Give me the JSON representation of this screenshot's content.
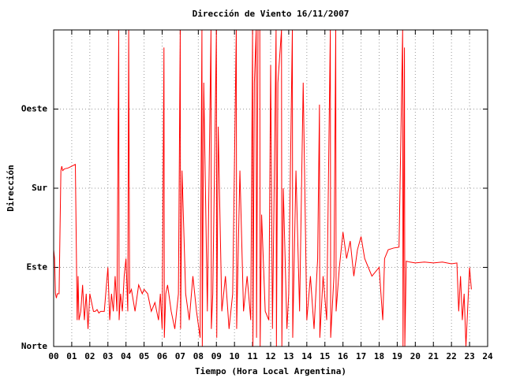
{
  "chart_data": {
    "type": "line",
    "title": "Dirección de Viento 16/11/2007",
    "x_label": "Tiempo (Hora Local Argentina)",
    "y_label": "Dirección",
    "color": "#ff0000",
    "grid": true,
    "xlim": [
      0,
      24
    ],
    "xticks": [
      {
        "value": 0,
        "label": "00"
      },
      {
        "value": 1,
        "label": "01"
      },
      {
        "value": 2,
        "label": "02"
      },
      {
        "value": 3,
        "label": "03"
      },
      {
        "value": 4,
        "label": "04"
      },
      {
        "value": 5,
        "label": "05"
      },
      {
        "value": 6,
        "label": "06"
      },
      {
        "value": 7,
        "label": "07"
      },
      {
        "value": 8,
        "label": "08"
      },
      {
        "value": 9,
        "label": "09"
      },
      10,
      11,
      12,
      13,
      14,
      15,
      16,
      17,
      18,
      19,
      20,
      21,
      22,
      23,
      24
    ],
    "ylim": [
      0,
      360
    ],
    "yticks": [
      {
        "value": 0,
        "label": "Norte"
      },
      {
        "value": 90,
        "label": "Este"
      },
      {
        "value": 180,
        "label": "Sur"
      },
      {
        "value": 270,
        "label": "Oeste"
      }
    ],
    "x": [
      0.0,
      0.05,
      0.1,
      0.15,
      0.2,
      0.3,
      0.4,
      0.45,
      0.5,
      0.6,
      0.8,
      1.0,
      1.2,
      1.3,
      1.35,
      1.4,
      1.5,
      1.6,
      1.7,
      1.8,
      1.9,
      2.0,
      2.1,
      2.2,
      2.3,
      2.4,
      2.5,
      2.6,
      2.8,
      3.0,
      3.1,
      3.2,
      3.3,
      3.4,
      3.5,
      3.6,
      3.62,
      3.7,
      3.8,
      3.9,
      4.0,
      4.1,
      4.15,
      4.2,
      4.3,
      4.5,
      4.7,
      4.9,
      5.0,
      5.2,
      5.4,
      5.6,
      5.8,
      5.9,
      6.0,
      6.1,
      6.12,
      6.2,
      6.3,
      6.5,
      6.7,
      6.9,
      7.0,
      7.02,
      7.1,
      7.3,
      7.5,
      7.7,
      7.9,
      8.1,
      8.2,
      8.22,
      8.3,
      8.5,
      8.7,
      8.72,
      8.8,
      9.0,
      9.02,
      9.1,
      9.3,
      9.5,
      9.7,
      9.9,
      10.1,
      10.12,
      10.3,
      10.5,
      10.7,
      10.9,
      11.0,
      11.02,
      11.1,
      11.2,
      11.22,
      11.3,
      11.4,
      11.42,
      11.5,
      11.7,
      11.9,
      12.0,
      12.1,
      12.3,
      12.32,
      12.4,
      12.6,
      12.62,
      12.7,
      12.9,
      13.0,
      13.2,
      13.22,
      13.4,
      13.6,
      13.8,
      14.0,
      14.2,
      14.4,
      14.6,
      14.7,
      14.72,
      14.9,
      15.1,
      15.3,
      15.32,
      15.5,
      15.6,
      15.62,
      15.8,
      16.0,
      16.2,
      16.4,
      16.6,
      16.8,
      17.0,
      17.2,
      17.4,
      17.6,
      17.8,
      18.0,
      18.2,
      18.3,
      18.5,
      18.8,
      19.1,
      19.3,
      19.32,
      19.4,
      19.42,
      19.5,
      19.7,
      20.0,
      20.5,
      21.0,
      21.5,
      22.0,
      22.3,
      22.4,
      22.5,
      22.6,
      22.7,
      22.8,
      23.0,
      23.1
    ],
    "values": [
      110,
      100,
      60,
      55,
      60,
      60,
      200,
      205,
      200,
      202,
      203,
      205,
      207,
      30,
      80,
      30,
      40,
      70,
      30,
      60,
      20,
      60,
      50,
      40,
      40,
      42,
      38,
      40,
      40,
      90,
      30,
      60,
      40,
      80,
      40,
      360,
      30,
      60,
      40,
      80,
      100,
      40,
      360,
      60,
      65,
      40,
      70,
      60,
      65,
      60,
      40,
      50,
      30,
      60,
      20,
      340,
      10,
      60,
      70,
      40,
      20,
      60,
      360,
      20,
      200,
      60,
      30,
      80,
      40,
      10,
      360,
      0,
      300,
      40,
      360,
      20,
      60,
      360,
      10,
      250,
      40,
      80,
      20,
      60,
      360,
      20,
      200,
      40,
      80,
      30,
      360,
      0,
      300,
      360,
      10,
      360,
      360,
      0,
      150,
      40,
      30,
      320,
      20,
      360,
      0,
      300,
      360,
      0,
      180,
      20,
      60,
      360,
      10,
      200,
      40,
      300,
      30,
      80,
      20,
      100,
      275,
      10,
      80,
      30,
      360,
      10,
      80,
      360,
      40,
      90,
      130,
      100,
      120,
      80,
      110,
      125,
      100,
      90,
      80,
      85,
      90,
      30,
      100,
      110,
      112,
      113,
      360,
      0,
      340,
      0,
      97,
      96,
      95,
      96,
      95,
      96,
      94,
      95,
      40,
      80,
      30,
      60,
      0,
      90,
      65
    ]
  }
}
